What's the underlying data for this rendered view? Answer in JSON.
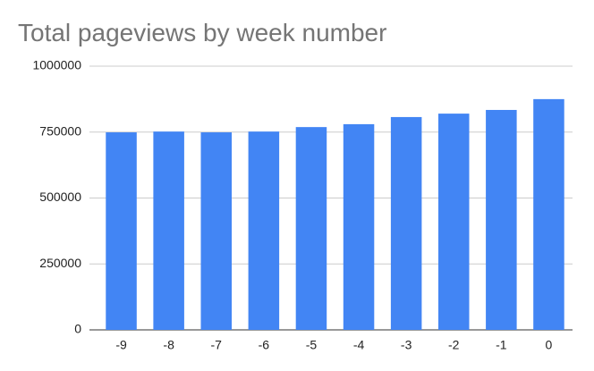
{
  "chart_data": {
    "type": "bar",
    "title": "Total pageviews by week number",
    "categories": [
      "-9",
      "-8",
      "-7",
      "-6",
      "-5",
      "-4",
      "-3",
      "-2",
      "-1",
      "0"
    ],
    "values": [
      749000,
      752000,
      749000,
      752000,
      769000,
      780000,
      807000,
      820000,
      834000,
      875000
    ],
    "color": "#4285f4",
    "ylim": [
      0,
      1000000
    ],
    "yticks": [
      0,
      250000,
      500000,
      750000,
      1000000
    ],
    "grid": true
  }
}
